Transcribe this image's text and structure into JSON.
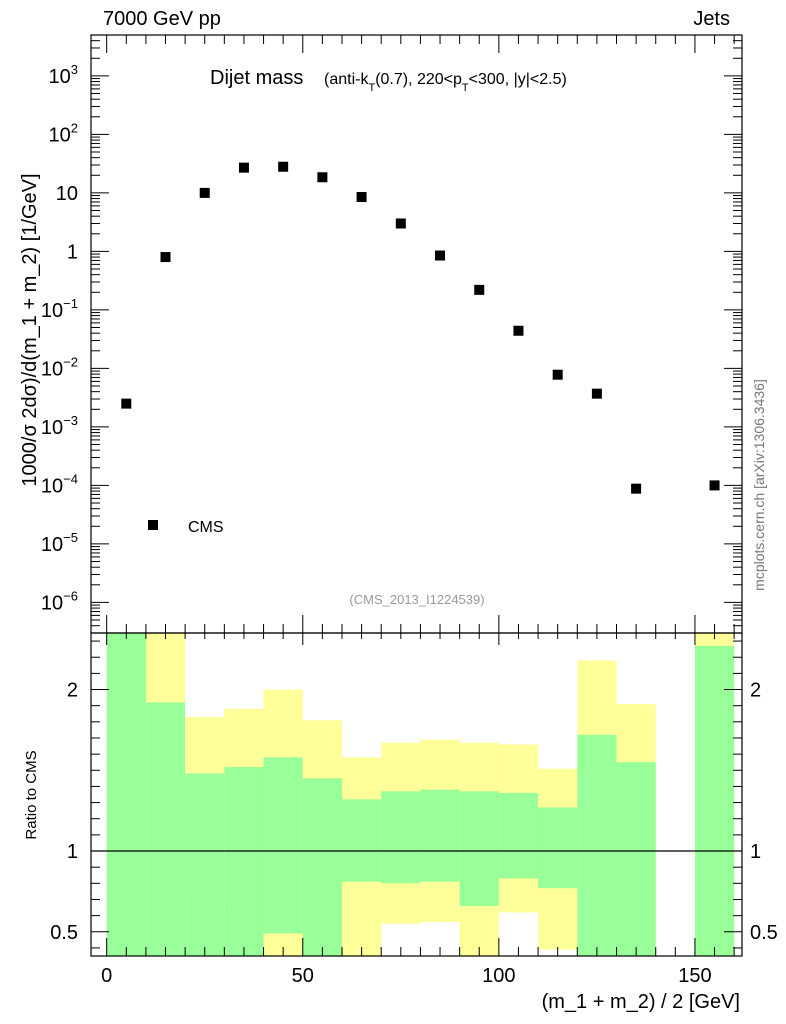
{
  "header": {
    "left": "7000 GeV pp",
    "right": "Jets"
  },
  "side_label": "mcplots.cern.ch [arXiv:1306.3436]",
  "analysis_id": "(CMS_2013_I1224539)",
  "title": {
    "main": "Dijet mass",
    "detail_prefix": "(anti-k",
    "detail_sub1": "T",
    "detail_mid": "(0.7), 220<p",
    "detail_sub2": "T",
    "detail_suffix": "<300, |y|<2.5)"
  },
  "legend": {
    "entry": "CMS"
  },
  "chart_data": [
    {
      "type": "scatter",
      "name": "main",
      "xlabel": "(m_1 + m_2) / 2 [GeV]",
      "ylabel": "1000/σ 2dσ)/d(m_1 + m_2) [1/GeV]",
      "ylog": true,
      "xlim": [
        -4,
        162
      ],
      "ylim": [
        3e-07,
        5000
      ],
      "yticks": [
        {
          "v": 1e-06,
          "b": "10",
          "e": "−6"
        },
        {
          "v": 1e-05,
          "b": "10",
          "e": "−5"
        },
        {
          "v": 0.0001,
          "b": "10",
          "e": "−4"
        },
        {
          "v": 0.001,
          "b": "10",
          "e": "−3"
        },
        {
          "v": 0.01,
          "b": "10",
          "e": "−2"
        },
        {
          "v": 0.1,
          "b": "10",
          "e": "−1"
        },
        {
          "v": 1,
          "b": "1",
          "e": ""
        },
        {
          "v": 10,
          "b": "10",
          "e": ""
        },
        {
          "v": 100,
          "b": "10",
          "e": "2"
        },
        {
          "v": 1000,
          "b": "10",
          "e": "3"
        }
      ],
      "series": [
        {
          "name": "CMS",
          "points": [
            {
              "x": 5,
              "y": 0.0025
            },
            {
              "x": 15,
              "y": 0.8
            },
            {
              "x": 25,
              "y": 10
            },
            {
              "x": 35,
              "y": 27
            },
            {
              "x": 45,
              "y": 28
            },
            {
              "x": 55,
              "y": 18.5
            },
            {
              "x": 65,
              "y": 8.5
            },
            {
              "x": 75,
              "y": 3.0
            },
            {
              "x": 85,
              "y": 0.85
            },
            {
              "x": 95,
              "y": 0.22
            },
            {
              "x": 105,
              "y": 0.044
            },
            {
              "x": 115,
              "y": 0.0078
            },
            {
              "x": 125,
              "y": 0.0037
            },
            {
              "x": 135,
              "y": 8.8e-05
            },
            {
              "x": 155,
              "y": 0.0001
            }
          ]
        }
      ]
    },
    {
      "type": "bar",
      "name": "ratio",
      "ylabel": "Ratio to CMS",
      "xlabel": "(m_1 + m_2) / 2 [GeV]",
      "xlim": [
        -4,
        162
      ],
      "ylim": [
        0.35,
        2.35
      ],
      "xticks": [
        0,
        50,
        100,
        150
      ],
      "yticks": [
        0.5,
        1,
        2
      ],
      "reference_line": 1,
      "bins": [
        {
          "lo": 0,
          "hi": 10,
          "green": [
            0.35,
            2.35
          ],
          "yellow": [
            0.35,
            2.35
          ]
        },
        {
          "lo": 10,
          "hi": 20,
          "green": [
            0.35,
            1.92
          ],
          "yellow": [
            0.35,
            2.35
          ]
        },
        {
          "lo": 20,
          "hi": 30,
          "green": [
            0.35,
            1.48
          ],
          "yellow": [
            0.71,
            1.83
          ]
        },
        {
          "lo": 30,
          "hi": 40,
          "green": [
            0.35,
            1.52
          ],
          "yellow": [
            0.65,
            1.88
          ]
        },
        {
          "lo": 40,
          "hi": 50,
          "green": [
            0.49,
            1.58
          ],
          "yellow": [
            0.35,
            2.0
          ]
        },
        {
          "lo": 50,
          "hi": 60,
          "green": [
            0.35,
            1.45
          ],
          "yellow": [
            0.72,
            1.81
          ]
        },
        {
          "lo": 60,
          "hi": 70,
          "green": [
            0.81,
            1.32
          ],
          "yellow": [
            0.35,
            1.58
          ]
        },
        {
          "lo": 70,
          "hi": 80,
          "green": [
            0.8,
            1.37
          ],
          "yellow": [
            0.55,
            1.67
          ]
        },
        {
          "lo": 80,
          "hi": 90,
          "green": [
            0.81,
            1.38
          ],
          "yellow": [
            0.56,
            1.69
          ]
        },
        {
          "lo": 90,
          "hi": 100,
          "green": [
            0.66,
            1.37
          ],
          "yellow": [
            0.35,
            1.67
          ]
        },
        {
          "lo": 100,
          "hi": 110,
          "green": [
            0.83,
            1.36
          ],
          "yellow": [
            0.62,
            1.66
          ]
        },
        {
          "lo": 110,
          "hi": 120,
          "green": [
            0.77,
            1.27
          ],
          "yellow": [
            0.39,
            1.51
          ]
        },
        {
          "lo": 120,
          "hi": 130,
          "green": [
            0.35,
            1.72
          ],
          "yellow": [
            0.35,
            2.18
          ]
        },
        {
          "lo": 130,
          "hi": 140,
          "green": [
            0.35,
            1.55
          ],
          "yellow": [
            0.67,
            1.91
          ]
        },
        {
          "lo": 150,
          "hi": 160,
          "green": [
            0.35,
            2.27
          ],
          "yellow": [
            0.35,
            2.35
          ]
        }
      ]
    }
  ]
}
